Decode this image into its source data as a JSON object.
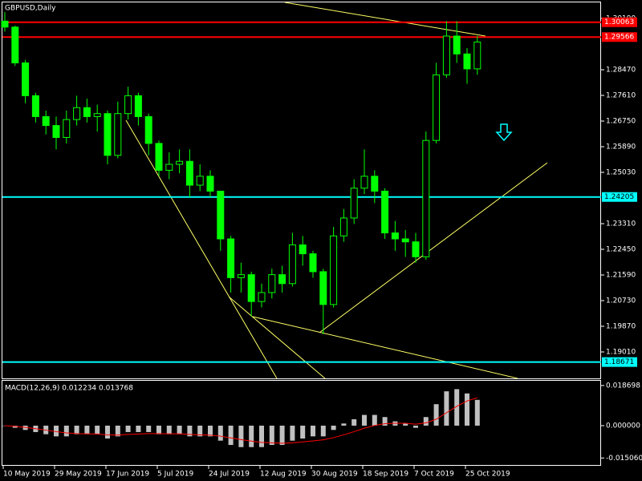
{
  "chart_data": [
    {
      "type": "candlestick",
      "title": "GBPUSD,Daily",
      "color": "#00ff00",
      "categories": [
        "10 May 2019",
        null,
        null,
        null,
        null,
        "29 May 2019",
        null,
        null,
        null,
        null,
        "17 Jun 2019",
        null,
        null,
        null,
        null,
        "5 Jul 2019",
        null,
        null,
        null,
        null,
        "24 Jul 2019",
        null,
        null,
        null,
        null,
        "12 Aug 2019",
        null,
        null,
        null,
        null,
        "30 Aug 2019",
        null,
        null,
        null,
        null,
        "18 Sep 2019",
        null,
        null,
        null,
        null,
        "7 Oct 2019",
        null,
        null,
        null,
        null,
        "25 Oct 2019",
        null
      ],
      "open": [
        1.301,
        1.299,
        1.287,
        1.276,
        1.269,
        1.266,
        1.262,
        1.268,
        1.272,
        1.269,
        1.27,
        1.256,
        1.27,
        1.276,
        1.269,
        1.26,
        1.251,
        1.253,
        1.254,
        1.246,
        1.249,
        1.244,
        1.228,
        1.215,
        1.216,
        1.207,
        1.21,
        1.216,
        1.213,
        1.226,
        1.223,
        1.217,
        1.206,
        1.229,
        1.235,
        1.245,
        1.249,
        1.244,
        1.23,
        1.228,
        1.227,
        1.222,
        1.261,
        1.283,
        1.296,
        1.29,
        1.285
      ],
      "high": [
        1.304,
        1.2995,
        1.288,
        1.277,
        1.271,
        1.269,
        1.271,
        1.276,
        1.275,
        1.273,
        1.271,
        1.274,
        1.279,
        1.277,
        1.27,
        1.261,
        1.257,
        1.258,
        1.258,
        1.253,
        1.251,
        1.244,
        1.229,
        1.22,
        1.217,
        1.213,
        1.218,
        1.219,
        1.23,
        1.229,
        1.224,
        1.218,
        1.232,
        1.238,
        1.248,
        1.258,
        1.251,
        1.245,
        1.234,
        1.231,
        1.23,
        1.264,
        1.287,
        1.301,
        1.301,
        1.292,
        1.296
      ],
      "low": [
        1.2975,
        1.286,
        1.2735,
        1.267,
        1.263,
        1.258,
        1.26,
        1.266,
        1.267,
        1.264,
        1.253,
        1.255,
        1.268,
        1.266,
        1.256,
        1.249,
        1.248,
        1.25,
        1.242,
        1.244,
        1.242,
        1.224,
        1.21,
        1.21,
        1.202,
        1.205,
        1.208,
        1.21,
        1.212,
        1.219,
        1.215,
        1.196,
        1.205,
        1.227,
        1.233,
        1.243,
        1.24,
        1.228,
        1.224,
        1.222,
        1.22,
        1.221,
        1.26,
        1.282,
        1.287,
        1.28,
        1.283
      ],
      "close": [
        1.299,
        1.287,
        1.276,
        1.269,
        1.266,
        1.262,
        1.268,
        1.272,
        1.269,
        1.27,
        1.256,
        1.27,
        1.276,
        1.269,
        1.26,
        1.251,
        1.253,
        1.254,
        1.246,
        1.249,
        1.244,
        1.228,
        1.215,
        1.216,
        1.207,
        1.21,
        1.216,
        1.213,
        1.226,
        1.223,
        1.217,
        1.206,
        1.229,
        1.235,
        1.245,
        1.249,
        1.244,
        1.23,
        1.228,
        1.227,
        1.222,
        1.261,
        1.283,
        1.296,
        1.29,
        1.285,
        1.294
      ],
      "ylim": [
        1.18123,
        1.30728
      ],
      "yticks": [
        {
          "value": 1.3019,
          "label": "1.30190"
        },
        {
          "value": 1.2847,
          "label": "1.28470"
        },
        {
          "value": 1.2761,
          "label": "1.27610"
        },
        {
          "value": 1.2675,
          "label": "1.26750"
        },
        {
          "value": 1.2589,
          "label": "1.25890"
        },
        {
          "value": 1.2503,
          "label": "1.25030"
        },
        {
          "value": 1.2331,
          "label": "1.23310"
        },
        {
          "value": 1.2245,
          "label": "1.22450"
        },
        {
          "value": 1.2159,
          "label": "1.21590"
        },
        {
          "value": 1.2073,
          "label": "1.20730"
        },
        {
          "value": 1.1987,
          "label": "1.19870"
        },
        {
          "value": 1.1901,
          "label": "1.19010"
        }
      ],
      "hlines": [
        {
          "value": 1.30063,
          "color": "#ff0000"
        },
        {
          "value": 1.29566,
          "color": "#ff0000"
        },
        {
          "value": 1.24205,
          "color": "#00ffff"
        },
        {
          "value": 1.18671,
          "color": "#00ffff"
        }
      ]
    },
    {
      "type": "macd",
      "title": "MACD(12,26,9) 0.012234 0.013768",
      "histogram": {
        "color": "#c0c0c0",
        "values": [
          0.0,
          -0.001,
          -0.002,
          -0.003,
          -0.004,
          -0.005,
          -0.005,
          -0.004,
          -0.004,
          -0.004,
          -0.006,
          -0.005,
          -0.003,
          -0.003,
          -0.003,
          -0.004,
          -0.004,
          -0.004,
          -0.005,
          -0.005,
          -0.005,
          -0.007,
          -0.009,
          -0.01,
          -0.01,
          -0.01,
          -0.009,
          -0.009,
          -0.007,
          -0.006,
          -0.005,
          -0.005,
          -0.002,
          0.001,
          0.003,
          0.005,
          0.005,
          0.004,
          0.002,
          0.001,
          -0.001,
          0.004,
          0.01,
          0.016,
          0.017,
          0.015,
          0.012
        ]
      },
      "signal": {
        "color": "#ff0000",
        "values": [
          0.0,
          -0.0003,
          -0.0008,
          -0.0014,
          -0.0021,
          -0.0028,
          -0.0034,
          -0.0037,
          -0.0038,
          -0.0039,
          -0.0043,
          -0.0044,
          -0.0041,
          -0.0039,
          -0.0037,
          -0.0037,
          -0.0038,
          -0.0038,
          -0.0041,
          -0.0043,
          -0.0044,
          -0.0049,
          -0.0057,
          -0.0065,
          -0.0072,
          -0.0078,
          -0.008,
          -0.0082,
          -0.008,
          -0.0076,
          -0.0071,
          -0.0066,
          -0.0056,
          -0.0043,
          -0.0028,
          -0.0012,
          0.0001,
          0.0009,
          0.0011,
          0.0011,
          0.0007,
          0.0013,
          0.003,
          0.006,
          0.009,
          0.0115,
          0.013
        ]
      },
      "ylim": [
        -0.0187,
        0.0209
      ],
      "yticks": [
        0.018698,
        {
          "value": 0,
          "label": "0.000000"
        },
        {
          "value": -0.01506,
          "label": "-0.015060"
        }
      ]
    }
  ]
}
